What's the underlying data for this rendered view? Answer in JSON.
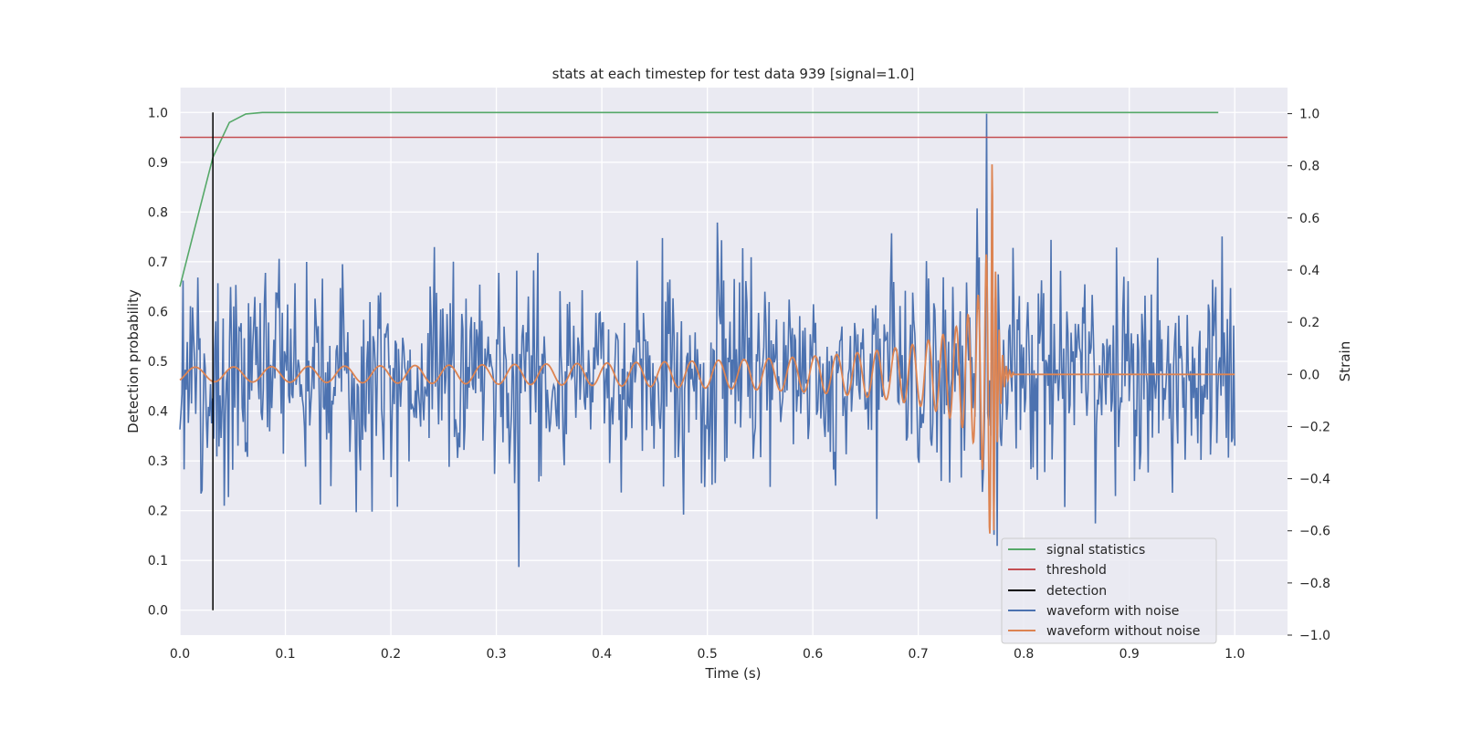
{
  "chart_data": {
    "type": "line",
    "title": "stats at each timestep for test data 939 [signal=1.0]",
    "xlabel": "Time (s)",
    "ylabel": "Detection probability",
    "y2label": "Strain",
    "xlim": [
      0.0,
      1.05
    ],
    "ylim": [
      -0.05,
      1.05
    ],
    "y2lim": [
      -1.0,
      1.1
    ],
    "x_ticks": [
      "0.0",
      "0.1",
      "0.2",
      "0.3",
      "0.4",
      "0.5",
      "0.6",
      "0.7",
      "0.8",
      "0.9",
      "1.0"
    ],
    "y_ticks": [
      "0.0",
      "0.1",
      "0.2",
      "0.3",
      "0.4",
      "0.5",
      "0.6",
      "0.7",
      "0.8",
      "0.9",
      "1.0"
    ],
    "y2_ticks": [
      "−1.0",
      "−0.8",
      "−0.6",
      "−0.4",
      "−0.2",
      "0.0",
      "0.2",
      "0.4",
      "0.6",
      "0.8",
      "1.0"
    ],
    "grid": true,
    "legend_position": "lower-right",
    "series": [
      {
        "name": "signal statistics",
        "color": "#55a868",
        "axis": "left",
        "x": [
          0.0,
          0.0156,
          0.0313,
          0.0469,
          0.0625,
          0.0781,
          0.1,
          0.2,
          0.3,
          0.4,
          0.5,
          0.6,
          0.7,
          0.8,
          0.9,
          0.9844
        ],
        "y": [
          0.65,
          0.78,
          0.91,
          0.98,
          0.997,
          1.0,
          1.0,
          1.0,
          1.0,
          1.0,
          1.0,
          1.0,
          1.0,
          1.0,
          1.0,
          1.0
        ]
      },
      {
        "name": "threshold",
        "color": "#c44e52",
        "axis": "left",
        "x": [
          0.0,
          1.05
        ],
        "y": [
          0.95,
          0.95
        ]
      },
      {
        "name": "detection",
        "color": "#000000",
        "axis": "left",
        "x": [
          0.0313,
          0.0313
        ],
        "y": [
          0.0,
          1.0
        ]
      },
      {
        "name": "waveform with noise",
        "color": "#4c72b0",
        "axis": "right",
        "description_values": "dense noisy strain sampled uniformly on x in [0, 1.0]; typical amplitude about ±0.3 with peaks reaching 1.0 near x=0.765",
        "x_range": [
          0.0,
          1.0
        ],
        "num_points": 1000,
        "noise_sigma": 0.2,
        "peak": [
          0.765,
          1.0
        ]
      },
      {
        "name": "waveform without noise",
        "color": "#dd8452",
        "axis": "right",
        "x_range": [
          0.0,
          1.0
        ],
        "chirp": {
          "f_start": 27,
          "merger_time": 0.77,
          "amp_start": 0.05,
          "amp_peak": 0.9,
          "ringdown_end": 0.79
        }
      }
    ]
  }
}
